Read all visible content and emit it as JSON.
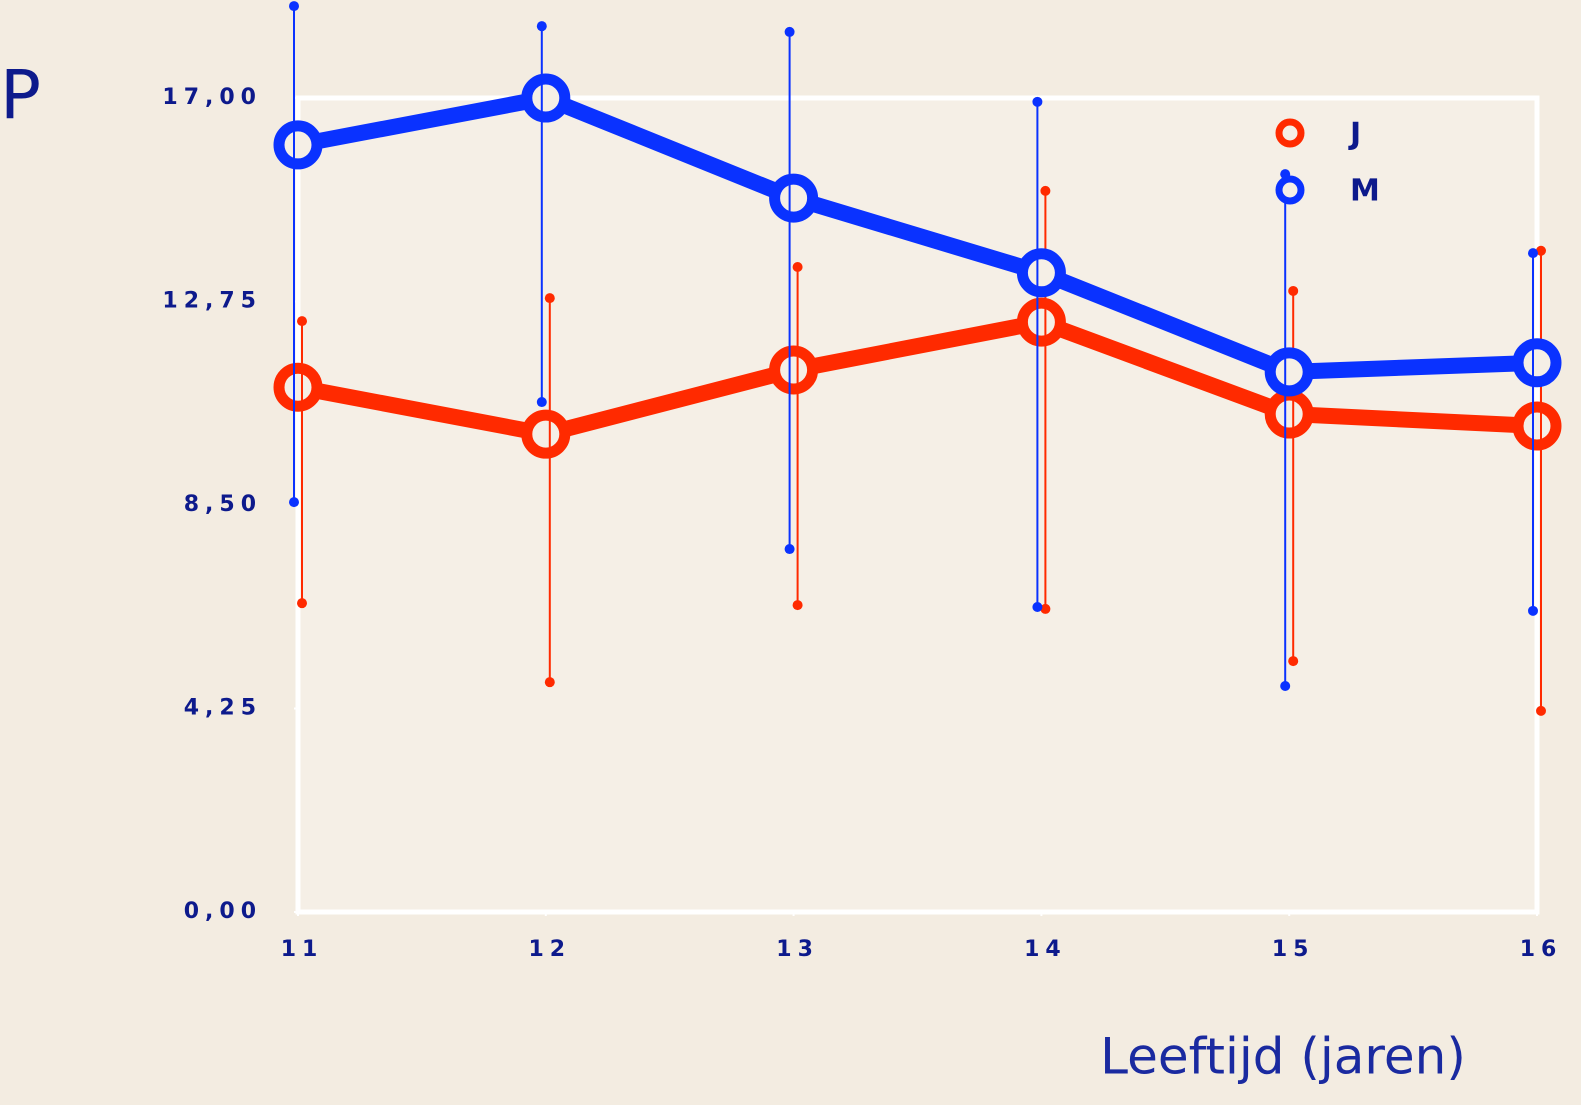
{
  "chart_data": {
    "type": "line",
    "title": "P",
    "x_label": "Leeftijd (jaren)",
    "x": [
      11,
      12,
      13,
      14,
      15,
      16
    ],
    "xlim": [
      11,
      16
    ],
    "xticks": [
      11,
      12,
      13,
      14,
      15,
      16
    ],
    "ylim": [
      0,
      17
    ],
    "yticks": [
      {
        "value": 0,
        "label": "0,00"
      },
      {
        "value": 4.25,
        "label": "4,25"
      },
      {
        "value": 8.5,
        "label": "8,50"
      },
      {
        "value": 12.75,
        "label": "12,75"
      },
      {
        "value": 17,
        "label": "17,00"
      }
    ],
    "legend": "top-right",
    "series": [
      {
        "name": "J",
        "color": "#ff2a00",
        "values": [
          10.96,
          9.98,
          11.32,
          12.32,
          10.4,
          10.15
        ],
        "lower": [
          6.45,
          4.8,
          6.41,
          6.33,
          5.24,
          4.2
        ],
        "upper": [
          12.34,
          12.82,
          13.47,
          15.06,
          12.97,
          13.81
        ]
      },
      {
        "name": "M",
        "color": "#0a32ff",
        "values": [
          16.02,
          17.0,
          14.91,
          13.35,
          11.28,
          11.47
        ],
        "lower": [
          8.56,
          10.65,
          7.58,
          6.37,
          4.72,
          6.29
        ],
        "upper": [
          18.92,
          18.5,
          18.38,
          16.92,
          15.41,
          13.76
        ]
      }
    ]
  }
}
